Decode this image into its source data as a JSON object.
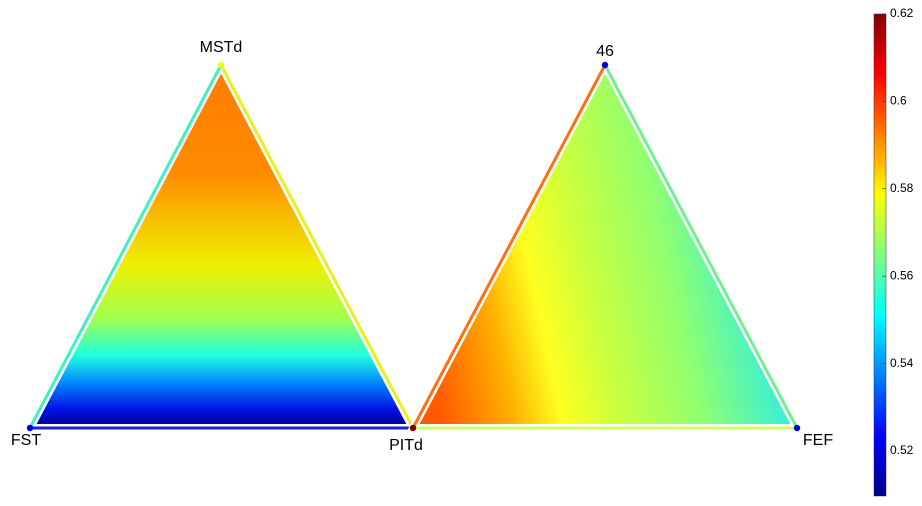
{
  "chart_data": {
    "type": "ternary",
    "colormap": "jet",
    "zlim": [
      0.5097,
      0.62
    ],
    "zticks": [
      0.52,
      0.54,
      0.56,
      0.58,
      0.6,
      0.62
    ],
    "triangles": [
      {
        "vertices": [
          {
            "label": "MSTd",
            "value": 0.576
          },
          {
            "label": "FST",
            "value": 0.52
          },
          {
            "label": "PITd",
            "value": 0.62
          }
        ]
      },
      {
        "vertices": [
          {
            "label": "46",
            "value": 0.52
          },
          {
            "label": "FEF",
            "value": 0.52
          }
        ]
      }
    ]
  }
}
